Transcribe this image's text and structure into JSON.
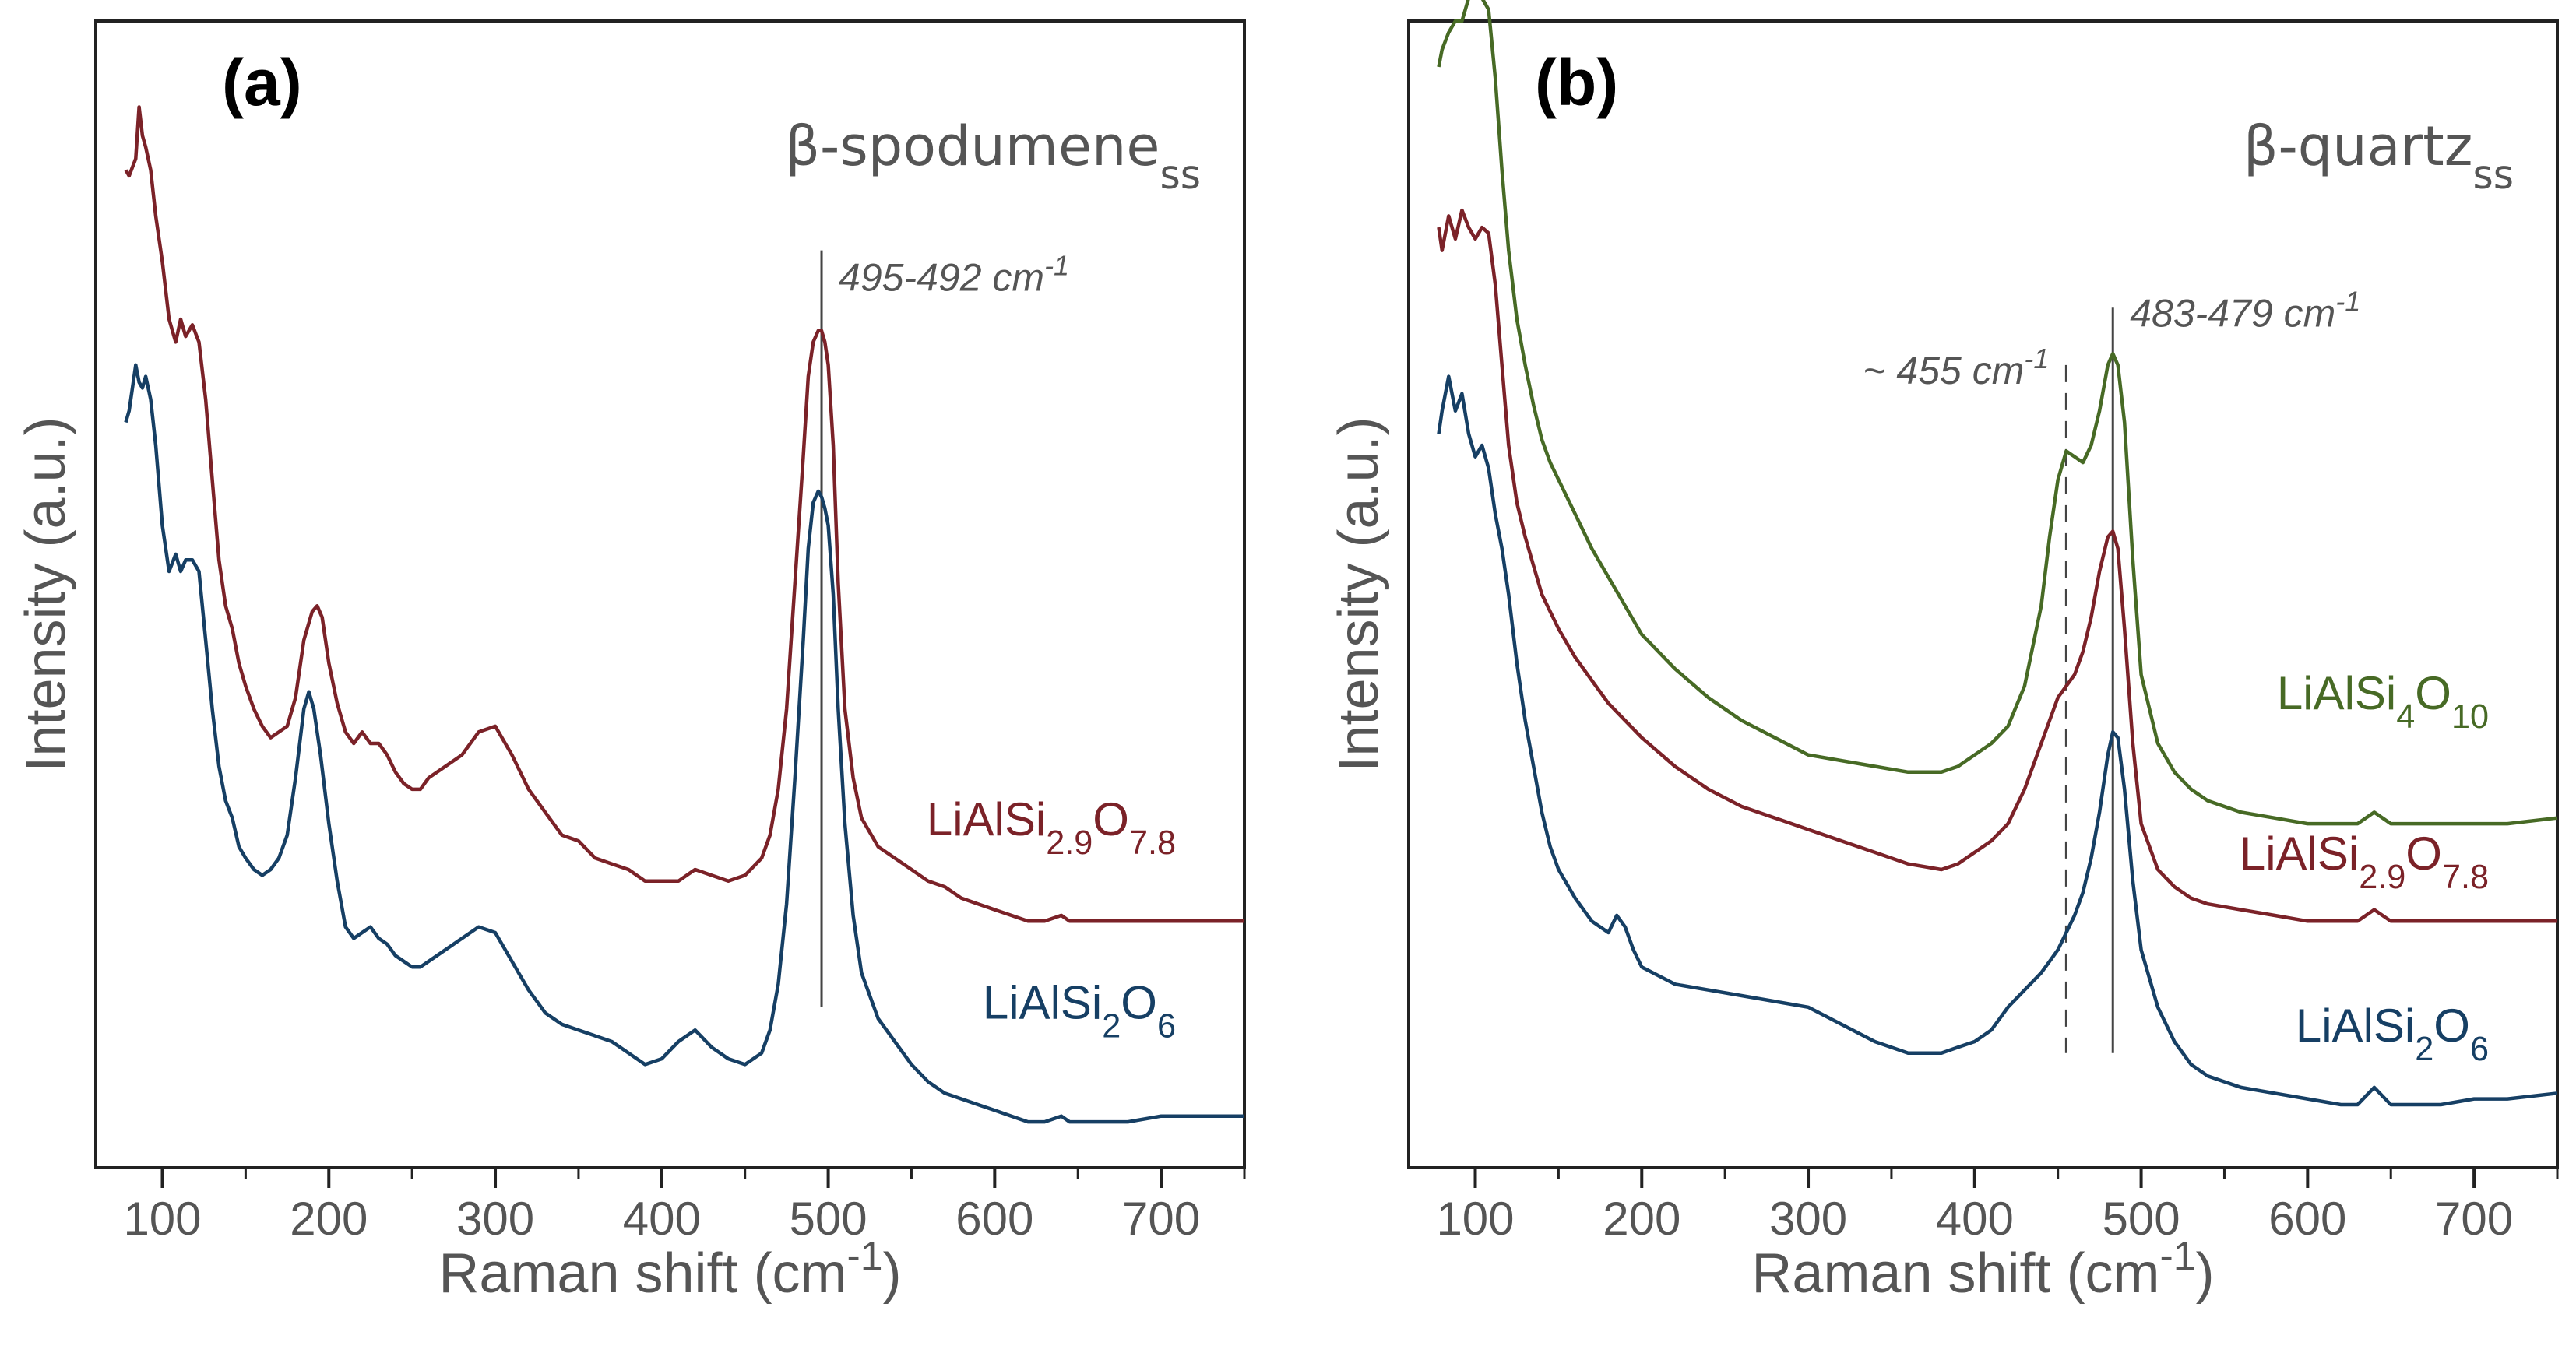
{
  "chart_data": [
    {
      "type": "line",
      "panel_label": "(a)",
      "phase": {
        "main": "β-spodumene",
        "sub": "ss"
      },
      "xlabel": {
        "main": "Raman shift (cm",
        "sup": "-1",
        "tail": ")"
      },
      "ylabel": "Intensity (a.u.)",
      "xlim": [
        60,
        750
      ],
      "ylim": [
        0,
        1
      ],
      "xticks": [
        100,
        200,
        300,
        400,
        500,
        600,
        700
      ],
      "xtick_labels": [
        "100",
        "200",
        "300",
        "400",
        "500",
        "600",
        "700"
      ],
      "annotations": [
        {
          "label": "495-492 cm",
          "sup": "-1",
          "x": 496,
          "style": "solid",
          "y_top": 0.8,
          "y_bottom": 0.14
        }
      ],
      "series": [
        {
          "name": "LiAlSi2.9O7.8",
          "label_parts": [
            [
              "LiAlSi",
              ""
            ],
            [
              "2.9",
              "sub"
            ],
            [
              "O",
              ""
            ],
            [
              "7.8",
              "sub"
            ]
          ],
          "color": "#7b2228",
          "label_y": 0.29,
          "x": [
            78,
            80,
            84,
            86,
            88,
            90,
            93,
            96,
            100,
            104,
            108,
            111,
            114,
            118,
            122,
            126,
            130,
            134,
            138,
            142,
            146,
            150,
            155,
            160,
            165,
            170,
            175,
            180,
            185,
            190,
            193,
            196,
            200,
            205,
            210,
            215,
            220,
            225,
            230,
            235,
            240,
            245,
            250,
            255,
            260,
            270,
            280,
            290,
            300,
            310,
            320,
            330,
            340,
            350,
            360,
            370,
            380,
            390,
            400,
            410,
            420,
            430,
            440,
            450,
            460,
            465,
            470,
            475,
            480,
            485,
            488,
            491,
            494,
            496,
            498,
            500,
            503,
            506,
            510,
            515,
            520,
            530,
            540,
            550,
            560,
            570,
            580,
            590,
            600,
            610,
            620,
            630,
            640,
            645,
            650,
            660,
            680,
            700,
            720,
            750
          ],
          "y": [
            0.87,
            0.865,
            0.88,
            0.925,
            0.9,
            0.89,
            0.87,
            0.83,
            0.79,
            0.74,
            0.72,
            0.74,
            0.725,
            0.735,
            0.72,
            0.67,
            0.6,
            0.53,
            0.49,
            0.47,
            0.44,
            0.42,
            0.4,
            0.385,
            0.375,
            0.38,
            0.385,
            0.41,
            0.46,
            0.485,
            0.49,
            0.48,
            0.44,
            0.405,
            0.38,
            0.37,
            0.38,
            0.37,
            0.37,
            0.36,
            0.345,
            0.335,
            0.33,
            0.33,
            0.34,
            0.35,
            0.36,
            0.38,
            0.385,
            0.36,
            0.33,
            0.31,
            0.29,
            0.285,
            0.27,
            0.265,
            0.26,
            0.25,
            0.25,
            0.25,
            0.26,
            0.255,
            0.25,
            0.255,
            0.27,
            0.29,
            0.33,
            0.4,
            0.51,
            0.62,
            0.69,
            0.72,
            0.73,
            0.73,
            0.72,
            0.7,
            0.63,
            0.51,
            0.4,
            0.34,
            0.305,
            0.28,
            0.27,
            0.26,
            0.25,
            0.245,
            0.235,
            0.23,
            0.225,
            0.22,
            0.215,
            0.215,
            0.22,
            0.215,
            0.215,
            0.215,
            0.215,
            0.215,
            0.215,
            0.215
          ]
        },
        {
          "name": "LiAlSi2O6",
          "label_parts": [
            [
              "LiAlSi",
              ""
            ],
            [
              "2",
              "sub"
            ],
            [
              "O",
              ""
            ],
            [
              "6",
              "sub"
            ]
          ],
          "color": "#163f64",
          "label_y": 0.13,
          "x": [
            78,
            80,
            84,
            86,
            88,
            90,
            93,
            96,
            100,
            104,
            108,
            111,
            114,
            118,
            122,
            126,
            130,
            134,
            138,
            142,
            146,
            150,
            155,
            160,
            165,
            170,
            175,
            180,
            185,
            188,
            191,
            195,
            200,
            205,
            210,
            215,
            220,
            225,
            230,
            235,
            240,
            245,
            250,
            255,
            260,
            270,
            280,
            290,
            300,
            310,
            320,
            330,
            340,
            350,
            360,
            370,
            380,
            390,
            400,
            410,
            420,
            430,
            440,
            450,
            460,
            465,
            470,
            475,
            480,
            485,
            488,
            491,
            494,
            496,
            498,
            500,
            503,
            506,
            510,
            515,
            520,
            530,
            540,
            550,
            560,
            570,
            580,
            590,
            600,
            610,
            620,
            630,
            640,
            645,
            650,
            660,
            680,
            700,
            720,
            750
          ],
          "y": [
            0.65,
            0.66,
            0.7,
            0.685,
            0.68,
            0.69,
            0.67,
            0.63,
            0.56,
            0.52,
            0.535,
            0.52,
            0.53,
            0.53,
            0.52,
            0.46,
            0.4,
            0.35,
            0.32,
            0.305,
            0.28,
            0.27,
            0.26,
            0.255,
            0.26,
            0.27,
            0.29,
            0.34,
            0.4,
            0.415,
            0.4,
            0.36,
            0.3,
            0.25,
            0.21,
            0.2,
            0.205,
            0.21,
            0.2,
            0.195,
            0.185,
            0.18,
            0.175,
            0.175,
            0.18,
            0.19,
            0.2,
            0.21,
            0.205,
            0.18,
            0.155,
            0.135,
            0.125,
            0.12,
            0.115,
            0.11,
            0.1,
            0.09,
            0.095,
            0.11,
            0.12,
            0.105,
            0.095,
            0.09,
            0.1,
            0.12,
            0.16,
            0.23,
            0.34,
            0.46,
            0.54,
            0.58,
            0.59,
            0.585,
            0.575,
            0.56,
            0.5,
            0.4,
            0.3,
            0.22,
            0.17,
            0.13,
            0.11,
            0.09,
            0.075,
            0.065,
            0.06,
            0.055,
            0.05,
            0.045,
            0.04,
            0.04,
            0.045,
            0.04,
            0.04,
            0.04,
            0.04,
            0.045,
            0.045,
            0.045
          ]
        }
      ]
    },
    {
      "type": "line",
      "panel_label": "(b)",
      "phase": {
        "main": "β-quartz",
        "sub": "ss"
      },
      "xlabel": {
        "main": "Raman shift (cm",
        "sup": "-1",
        "tail": ")"
      },
      "ylabel": "Intensity (a.u.)",
      "xlim": [
        60,
        750
      ],
      "ylim": [
        0,
        1
      ],
      "xticks": [
        100,
        200,
        300,
        400,
        500,
        600,
        700
      ],
      "xtick_labels": [
        "100",
        "200",
        "300",
        "400",
        "500",
        "600",
        "700"
      ],
      "annotations": [
        {
          "label": "~ 455 cm",
          "sup": "-1",
          "x": 455,
          "style": "dashed",
          "y_top": 0.7,
          "y_bottom": 0.1,
          "label_side": "left"
        },
        {
          "label": "483-479 cm",
          "sup": "-1",
          "x": 483,
          "style": "solid",
          "y_top": 0.75,
          "y_bottom": 0.1,
          "label_side": "right"
        }
      ],
      "series": [
        {
          "name": "LiAlSi4O10",
          "label_parts": [
            [
              "LiAlSi",
              ""
            ],
            [
              "4",
              "sub"
            ],
            [
              "O",
              ""
            ],
            [
              "10",
              "sub"
            ]
          ],
          "color": "#476a25",
          "label_y": 0.4,
          "x": [
            78,
            80,
            84,
            88,
            92,
            96,
            100,
            104,
            108,
            112,
            116,
            120,
            125,
            130,
            135,
            140,
            145,
            150,
            160,
            170,
            180,
            190,
            200,
            220,
            240,
            260,
            280,
            300,
            320,
            340,
            360,
            380,
            390,
            400,
            410,
            420,
            430,
            440,
            445,
            450,
            455,
            460,
            465,
            470,
            475,
            480,
            483,
            486,
            490,
            495,
            500,
            510,
            520,
            530,
            540,
            560,
            580,
            600,
            620,
            630,
            640,
            650,
            660,
            680,
            700,
            720,
            750
          ],
          "y": [
            0.96,
            0.975,
            0.99,
            1.0,
            1.0,
            1.02,
            1.02,
            1.02,
            1.01,
            0.95,
            0.87,
            0.8,
            0.74,
            0.7,
            0.665,
            0.635,
            0.615,
            0.6,
            0.57,
            0.54,
            0.515,
            0.49,
            0.465,
            0.435,
            0.41,
            0.39,
            0.375,
            0.36,
            0.355,
            0.35,
            0.345,
            0.345,
            0.35,
            0.36,
            0.37,
            0.385,
            0.42,
            0.49,
            0.55,
            0.6,
            0.625,
            0.62,
            0.615,
            0.63,
            0.66,
            0.7,
            0.71,
            0.7,
            0.65,
            0.53,
            0.43,
            0.37,
            0.345,
            0.33,
            0.32,
            0.31,
            0.305,
            0.3,
            0.3,
            0.3,
            0.31,
            0.3,
            0.3,
            0.3,
            0.3,
            0.3,
            0.305
          ]
        },
        {
          "name": "LiAlSi2.9O7.8",
          "label_parts": [
            [
              "LiAlSi",
              ""
            ],
            [
              "2.9",
              "sub"
            ],
            [
              "O",
              ""
            ],
            [
              "7.8",
              "sub"
            ]
          ],
          "color": "#7b2228",
          "label_y": 0.26,
          "x": [
            78,
            80,
            84,
            88,
            92,
            96,
            100,
            104,
            108,
            112,
            116,
            120,
            125,
            130,
            135,
            140,
            145,
            150,
            160,
            170,
            180,
            190,
            200,
            220,
            240,
            260,
            280,
            300,
            320,
            340,
            360,
            380,
            390,
            400,
            410,
            420,
            430,
            440,
            445,
            450,
            455,
            460,
            465,
            470,
            475,
            480,
            483,
            486,
            490,
            495,
            500,
            510,
            520,
            530,
            540,
            560,
            580,
            600,
            620,
            630,
            640,
            650,
            660,
            680,
            700,
            720,
            750
          ],
          "y": [
            0.82,
            0.8,
            0.83,
            0.81,
            0.835,
            0.82,
            0.81,
            0.82,
            0.815,
            0.77,
            0.7,
            0.63,
            0.58,
            0.55,
            0.525,
            0.5,
            0.485,
            0.47,
            0.445,
            0.425,
            0.405,
            0.39,
            0.375,
            0.35,
            0.33,
            0.315,
            0.305,
            0.295,
            0.285,
            0.275,
            0.265,
            0.26,
            0.265,
            0.275,
            0.285,
            0.3,
            0.33,
            0.37,
            0.39,
            0.41,
            0.42,
            0.43,
            0.45,
            0.48,
            0.52,
            0.55,
            0.555,
            0.54,
            0.47,
            0.37,
            0.3,
            0.26,
            0.245,
            0.235,
            0.23,
            0.225,
            0.22,
            0.215,
            0.215,
            0.215,
            0.225,
            0.215,
            0.215,
            0.215,
            0.215,
            0.215,
            0.215
          ]
        },
        {
          "name": "LiAlSi2O6",
          "label_parts": [
            [
              "LiAlSi",
              ""
            ],
            [
              "2",
              "sub"
            ],
            [
              "O",
              ""
            ],
            [
              "6",
              "sub"
            ]
          ],
          "color": "#163f64",
          "label_y": 0.11,
          "x": [
            78,
            80,
            84,
            88,
            92,
            96,
            100,
            104,
            108,
            112,
            116,
            120,
            125,
            130,
            135,
            140,
            145,
            150,
            160,
            170,
            180,
            185,
            190,
            195,
            200,
            220,
            240,
            260,
            280,
            300,
            320,
            340,
            360,
            380,
            390,
            400,
            410,
            420,
            430,
            440,
            445,
            450,
            455,
            460,
            465,
            470,
            475,
            480,
            483,
            486,
            490,
            495,
            500,
            510,
            520,
            530,
            540,
            560,
            580,
            600,
            620,
            630,
            640,
            650,
            660,
            680,
            700,
            720,
            750
          ],
          "y": [
            0.64,
            0.66,
            0.69,
            0.66,
            0.675,
            0.64,
            0.62,
            0.63,
            0.61,
            0.57,
            0.54,
            0.5,
            0.44,
            0.39,
            0.35,
            0.31,
            0.28,
            0.26,
            0.235,
            0.215,
            0.205,
            0.22,
            0.21,
            0.19,
            0.175,
            0.16,
            0.155,
            0.15,
            0.145,
            0.14,
            0.125,
            0.11,
            0.1,
            0.1,
            0.105,
            0.11,
            0.12,
            0.14,
            0.155,
            0.17,
            0.18,
            0.19,
            0.205,
            0.22,
            0.24,
            0.27,
            0.31,
            0.36,
            0.38,
            0.375,
            0.33,
            0.25,
            0.19,
            0.14,
            0.11,
            0.09,
            0.08,
            0.07,
            0.065,
            0.06,
            0.055,
            0.055,
            0.07,
            0.055,
            0.055,
            0.055,
            0.06,
            0.06,
            0.065
          ]
        }
      ]
    }
  ]
}
